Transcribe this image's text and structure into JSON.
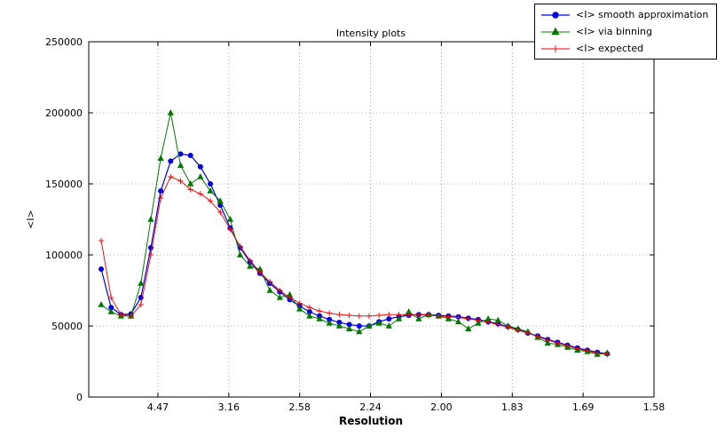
{
  "chart_data": {
    "type": "line",
    "title": "Intensity plots",
    "xlabel": "Resolution",
    "ylabel": "<I>",
    "grid": "dotted",
    "legend_position": "top-right",
    "x_axis": {
      "units": "resolution d (angstrom), axis linear in 1/d^2",
      "range_s": [
        0.0012,
        0.4
      ],
      "tick_positions_s": [
        0.05,
        0.1,
        0.15,
        0.2,
        0.25,
        0.3,
        0.35,
        0.4
      ],
      "tick_labels": [
        "4.47",
        "3.16",
        "2.58",
        "2.24",
        "2.00",
        "1.83",
        "1.69",
        "1.58"
      ]
    },
    "y_axis": {
      "range": [
        0,
        250000
      ],
      "ticks": [
        0,
        50000,
        100000,
        150000,
        200000,
        250000
      ]
    },
    "x_s": [
      0.01,
      0.017,
      0.024,
      0.031,
      0.038,
      0.045,
      0.052,
      0.059,
      0.066,
      0.073,
      0.08,
      0.087,
      0.094,
      0.101,
      0.108,
      0.115,
      0.122,
      0.129,
      0.136,
      0.143,
      0.15,
      0.157,
      0.164,
      0.171,
      0.178,
      0.185,
      0.192,
      0.199,
      0.206,
      0.213,
      0.22,
      0.227,
      0.234,
      0.241,
      0.248,
      0.255,
      0.262,
      0.269,
      0.276,
      0.283,
      0.29,
      0.297,
      0.304,
      0.311,
      0.318,
      0.325,
      0.332,
      0.339,
      0.346,
      0.353,
      0.36,
      0.367
    ],
    "series": [
      {
        "name": "<I> smooth approximation",
        "color": "#0000e0",
        "marker": "circle",
        "line_width": 1.2,
        "values": [
          90000,
          63000,
          58000,
          58500,
          70000,
          105000,
          145000,
          166000,
          171000,
          170000,
          162000,
          150000,
          135000,
          119000,
          105000,
          95000,
          87000,
          80000,
          74000,
          68500,
          64000,
          60000,
          57000,
          54500,
          52500,
          51000,
          50000,
          50000,
          53000,
          55000,
          56500,
          57500,
          58000,
          58000,
          57500,
          57000,
          56500,
          55500,
          54500,
          53000,
          51500,
          49500,
          47500,
          45000,
          43000,
          40500,
          38500,
          36500,
          34500,
          33000,
          31500,
          30500
        ]
      },
      {
        "name": "<I> via binning",
        "color": "#007700",
        "marker": "triangle",
        "line_width": 1.0,
        "values": [
          65000,
          60000,
          57000,
          57000,
          80000,
          125000,
          168000,
          200000,
          163000,
          150000,
          155000,
          145000,
          138000,
          125000,
          100000,
          92000,
          90000,
          75000,
          70000,
          72000,
          62000,
          57000,
          55000,
          52000,
          50000,
          48000,
          46000,
          50000,
          52000,
          50000,
          55000,
          60000,
          55000,
          58000,
          57000,
          55000,
          53000,
          48000,
          52000,
          55000,
          54000,
          50000,
          48000,
          46000,
          42000,
          38000,
          37000,
          35000,
          33000,
          32000,
          30000,
          31000
        ]
      },
      {
        "name": "<I> expected",
        "color": "#ee0000",
        "marker": "plus",
        "line_width": 0.9,
        "values": [
          110000,
          70000,
          58000,
          57000,
          65000,
          100000,
          140000,
          155000,
          152000,
          146000,
          143000,
          138000,
          130000,
          118000,
          106000,
          96000,
          88000,
          81000,
          75000,
          70000,
          66000,
          63000,
          60500,
          59000,
          58000,
          57500,
          57000,
          57000,
          57500,
          58000,
          58000,
          58000,
          58000,
          57500,
          57000,
          56500,
          56000,
          55000,
          54000,
          52500,
          51000,
          49000,
          47000,
          45000,
          42500,
          40000,
          38000,
          36000,
          34000,
          32500,
          31000,
          30000
        ]
      }
    ]
  }
}
